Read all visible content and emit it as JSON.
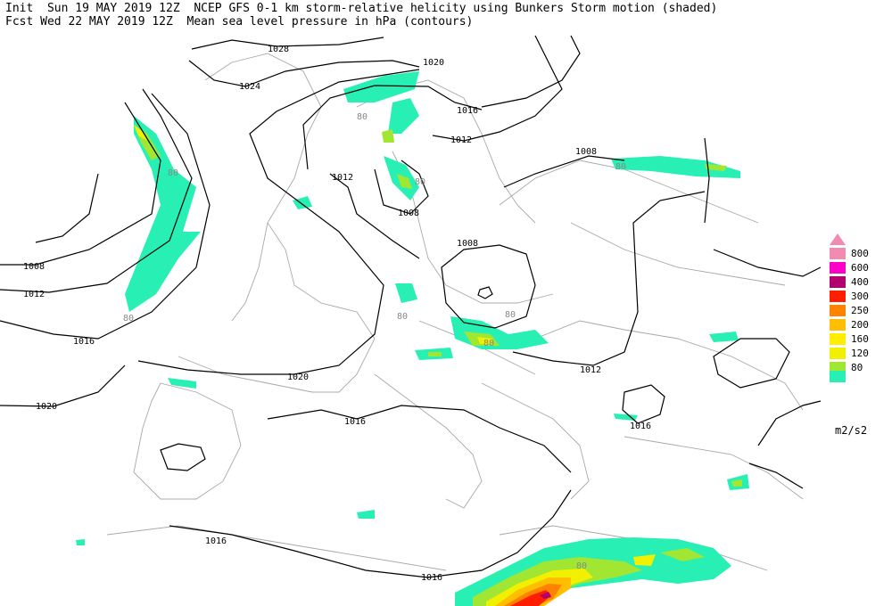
{
  "header": {
    "line1": "Init  Sun 19 MAY 2019 12Z  NCEP GFS 0-1 km storm-relative helicity using Bunkers Storm motion (shaded)",
    "line2": "Fcst Wed 22 MAY 2019 12Z  Mean sea level pressure in hPa (contours)"
  },
  "legend": {
    "units": "m2/s2",
    "levels": [
      {
        "label": "800",
        "color": "#f08cb4"
      },
      {
        "label": "600",
        "color": "#ff00c8"
      },
      {
        "label": "400",
        "color": "#b4006e"
      },
      {
        "label": "300",
        "color": "#ff1e00"
      },
      {
        "label": "250",
        "color": "#ff8200"
      },
      {
        "label": "200",
        "color": "#ffbe00"
      },
      {
        "label": "160",
        "color": "#ffee00"
      },
      {
        "label": "120",
        "color": "#f0f000"
      },
      {
        "label": "80",
        "color": "#a0e632"
      }
    ],
    "base_color": "#28f0b4"
  },
  "contour_labels": {
    "c1028": "1028",
    "c1024": "1024",
    "c1020a": "1020",
    "c1020b": "1020",
    "c1020c": "1020",
    "c1016a": "1016",
    "c1016b": "1016",
    "c1016c": "1016",
    "c1016d": "1016",
    "c1016e": "1016",
    "c1016f": "1016",
    "c1012a": "1012",
    "c1012b": "1012",
    "c1012c": "1012",
    "c1012d": "1012",
    "c1008a": "1008",
    "c1008b": "1008",
    "c1008c": "1008",
    "c1008d": "1008"
  },
  "helicity_labels": {
    "h1": "80",
    "h2": "80",
    "h3": "80",
    "h4": "80",
    "h5": "80",
    "h6": "80",
    "h7": "80",
    "h8": "80",
    "h9": "80"
  }
}
